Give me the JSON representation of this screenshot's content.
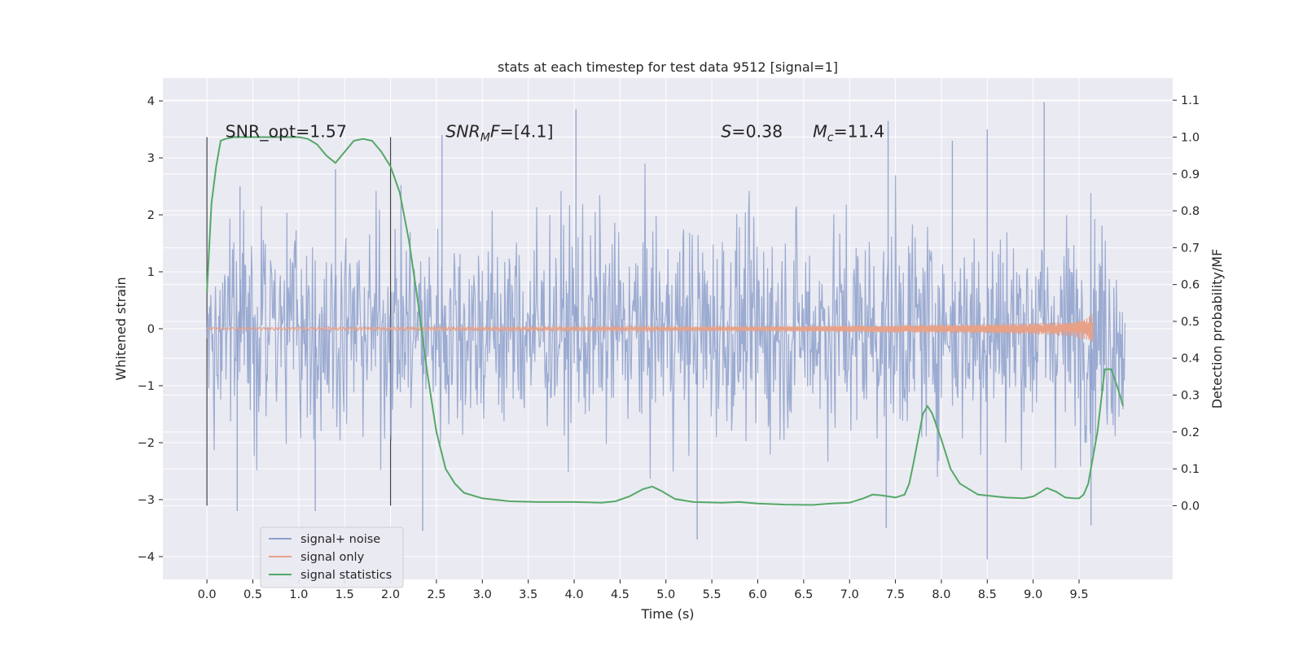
{
  "chart_data": {
    "type": "line",
    "title": "stats at each timestep for test data 9512 [signal=1]",
    "xlabel": "Time (s)",
    "ylabel": "Whitened strain",
    "ylabel_right": "Detection probability/MF",
    "xlim": [
      -0.48,
      10.52
    ],
    "ylim": [
      -4.4,
      4.4
    ],
    "ylim_right": [
      -0.2,
      1.16
    ],
    "x_ticks": [
      "0.0",
      "0.5",
      "1.0",
      "1.5",
      "2.0",
      "2.5",
      "3.0",
      "3.5",
      "4.0",
      "4.5",
      "5.0",
      "5.5",
      "6.0",
      "6.5",
      "7.0",
      "7.5",
      "8.0",
      "8.5",
      "9.0",
      "9.5"
    ],
    "y_ticks": [
      "−4",
      "−3",
      "−2",
      "−1",
      "0",
      "1",
      "2",
      "3",
      "4"
    ],
    "y_right_ticks": [
      "0.0",
      "0.1",
      "0.2",
      "0.3",
      "0.4",
      "0.5",
      "0.6",
      "0.7",
      "0.8",
      "0.9",
      "1.0",
      "1.1"
    ],
    "grid": true,
    "legend_position": "lower-left",
    "vertical_markers": [
      0.0,
      2.0
    ],
    "series": [
      {
        "name": "signal+ noise",
        "color": "#8da0cb",
        "axis": "left",
        "x_range": [
          0.0,
          10.0
        ],
        "typical_envelope": [
          -1.8,
          1.8
        ],
        "peaks": [
          {
            "x": 0.33,
            "y": -3.2
          },
          {
            "x": 0.36,
            "y": 2.5
          },
          {
            "x": 1.18,
            "y": -3.2
          },
          {
            "x": 1.4,
            "y": 2.8
          },
          {
            "x": 2.35,
            "y": -3.55
          },
          {
            "x": 2.56,
            "y": 3.4
          },
          {
            "x": 4.02,
            "y": 3.85
          },
          {
            "x": 5.34,
            "y": -3.7
          },
          {
            "x": 7.42,
            "y": 3.65
          },
          {
            "x": 7.4,
            "y": -3.5
          },
          {
            "x": 8.12,
            "y": 3.3
          },
          {
            "x": 8.5,
            "y": -4.05
          },
          {
            "x": 8.5,
            "y": 3.5
          },
          {
            "x": 9.12,
            "y": 3.98
          },
          {
            "x": 9.63,
            "y": -3.45
          }
        ]
      },
      {
        "name": "signal only",
        "color": "#e8a187",
        "axis": "left",
        "x_range": [
          0.0,
          9.65
        ],
        "description_points": [
          {
            "x": 0.0,
            "amplitude": 0.02
          },
          {
            "x": 6.0,
            "amplitude": 0.04
          },
          {
            "x": 8.5,
            "amplitude": 0.08
          },
          {
            "x": 9.4,
            "amplitude": 0.12
          },
          {
            "x": 9.6,
            "amplitude": 0.2
          },
          {
            "x": 9.65,
            "amplitude": 0.28
          }
        ]
      },
      {
        "name": "signal statistics",
        "color": "#55a868",
        "axis": "right",
        "x": [
          0.0,
          0.05,
          0.1,
          0.15,
          0.2,
          0.3,
          0.5,
          0.8,
          1.0,
          1.1,
          1.2,
          1.3,
          1.4,
          1.5,
          1.6,
          1.7,
          1.8,
          1.9,
          2.0,
          2.1,
          2.2,
          2.3,
          2.4,
          2.5,
          2.6,
          2.7,
          2.8,
          3.0,
          3.3,
          3.6,
          4.0,
          4.3,
          4.45,
          4.6,
          4.75,
          4.85,
          4.95,
          5.1,
          5.3,
          5.6,
          5.8,
          6.0,
          6.3,
          6.6,
          6.8,
          7.0,
          7.15,
          7.25,
          7.35,
          7.5,
          7.6,
          7.65,
          7.7,
          7.8,
          7.85,
          7.9,
          8.0,
          8.1,
          8.2,
          8.4,
          8.7,
          8.9,
          9.0,
          9.1,
          9.15,
          9.25,
          9.35,
          9.45,
          9.5,
          9.55,
          9.6,
          9.7,
          9.78,
          9.85,
          9.92,
          9.98
        ],
        "y": [
          0.58,
          0.82,
          0.92,
          0.99,
          0.995,
          1.0,
          1.0,
          1.0,
          1.0,
          0.995,
          0.98,
          0.95,
          0.93,
          0.96,
          0.99,
          0.995,
          0.99,
          0.96,
          0.92,
          0.85,
          0.72,
          0.55,
          0.36,
          0.2,
          0.1,
          0.06,
          0.035,
          0.02,
          0.012,
          0.01,
          0.01,
          0.008,
          0.012,
          0.025,
          0.045,
          0.052,
          0.04,
          0.018,
          0.01,
          0.008,
          0.01,
          0.006,
          0.003,
          0.002,
          0.006,
          0.008,
          0.02,
          0.03,
          0.028,
          0.022,
          0.03,
          0.06,
          0.12,
          0.25,
          0.27,
          0.25,
          0.18,
          0.1,
          0.06,
          0.03,
          0.022,
          0.02,
          0.025,
          0.04,
          0.048,
          0.038,
          0.022,
          0.02,
          0.02,
          0.03,
          0.06,
          0.2,
          0.37,
          0.37,
          0.32,
          0.27
        ]
      }
    ],
    "annotations": [
      {
        "x": 0.2,
        "y_right": 1.0,
        "parts": [
          {
            "text": "SNR_opt=1.57",
            "style": "normal"
          }
        ]
      },
      {
        "x": 2.6,
        "y_right": 1.0,
        "parts": [
          {
            "text": "SNR",
            "style": "italic"
          },
          {
            "text": "M",
            "style": "italic-sub"
          },
          {
            "text": "F",
            "style": "italic"
          },
          {
            "text": "=[4.1]",
            "style": "normal"
          }
        ]
      },
      {
        "x": 5.6,
        "y_right": 1.0,
        "parts": [
          {
            "text": "S",
            "style": "italic"
          },
          {
            "text": "=0.38",
            "style": "normal"
          }
        ]
      },
      {
        "x": 6.6,
        "y_right": 1.0,
        "parts": [
          {
            "text": "M",
            "style": "italic"
          },
          {
            "text": "c",
            "style": "italic-sub"
          },
          {
            "text": "=11.4",
            "style": "normal"
          }
        ]
      }
    ]
  }
}
